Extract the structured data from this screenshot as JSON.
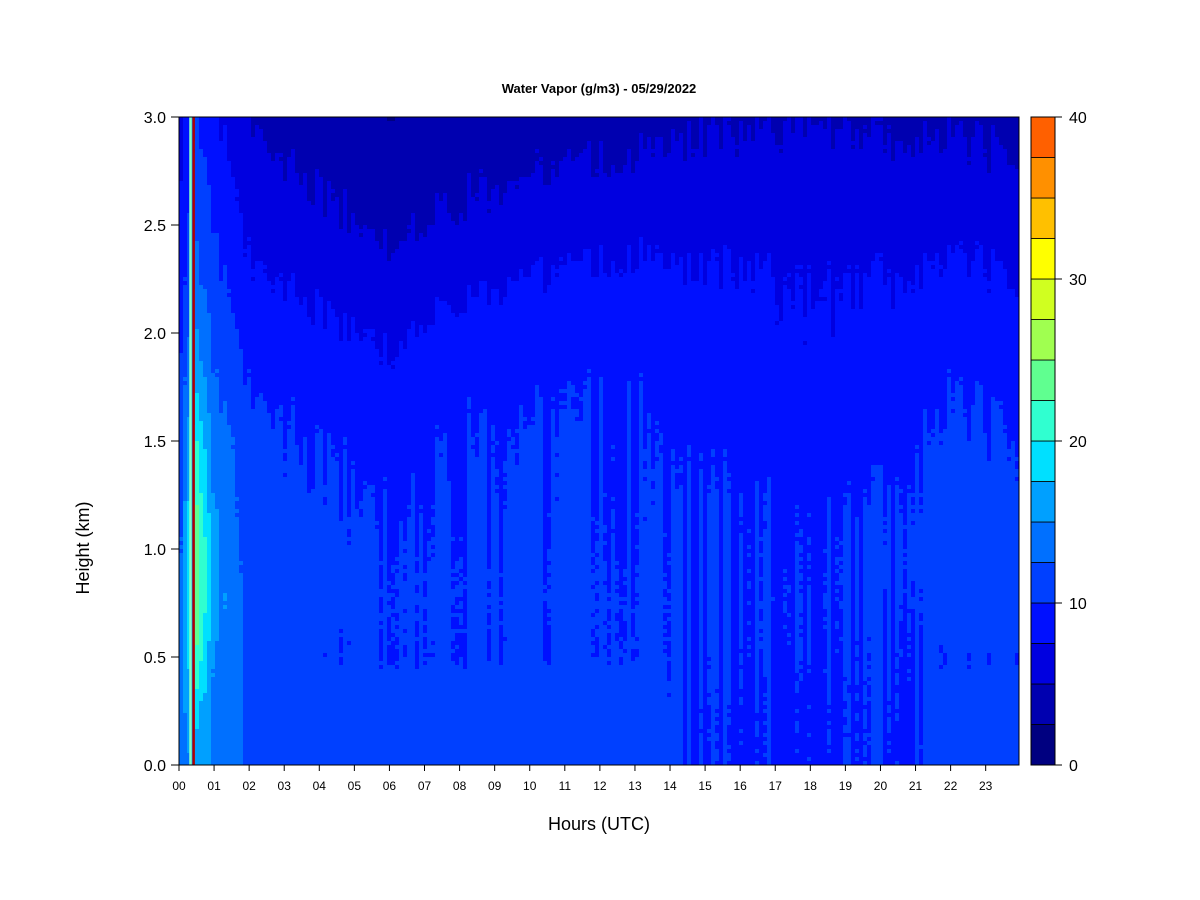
{
  "chart_data": {
    "type": "heatmap",
    "title": "Water Vapor (g/m3) - 05/29/2022",
    "xlabel": "Hours (UTC)",
    "ylabel": "Height (km)",
    "x_tick_labels": [
      "00",
      "01",
      "02",
      "03",
      "04",
      "05",
      "06",
      "07",
      "08",
      "09",
      "10",
      "11",
      "12",
      "13",
      "14",
      "15",
      "16",
      "17",
      "18",
      "19",
      "20",
      "21",
      "22",
      "23"
    ],
    "x_ticks": [
      0,
      1,
      2,
      3,
      4,
      5,
      6,
      7,
      8,
      9,
      10,
      11,
      12,
      13,
      14,
      15,
      16,
      17,
      18,
      19,
      20,
      21,
      22,
      23
    ],
    "xlim": [
      0,
      23.95
    ],
    "y_tick_labels": [
      "0.0",
      "0.5",
      "1.0",
      "1.5",
      "2.0",
      "2.5",
      "3.0"
    ],
    "y_ticks": [
      0,
      0.5,
      1.0,
      1.5,
      2.0,
      2.5,
      3.0
    ],
    "ylim": [
      0,
      3.0
    ],
    "colorbar": {
      "levels": [
        0,
        2.5,
        5,
        7.5,
        10,
        12.5,
        15,
        17.5,
        20,
        22.5,
        25,
        27.5,
        30,
        32.5,
        35,
        37.5,
        40
      ],
      "tick_labels": [
        "0",
        "10",
        "20",
        "30",
        "40"
      ],
      "tick_values": [
        0,
        10,
        20,
        30,
        40
      ],
      "colors": [
        "#000080",
        "#0000b0",
        "#0000e0",
        "#0010ff",
        "#0040ff",
        "#0070ff",
        "#00a0ff",
        "#00e0ff",
        "#30ffd0",
        "#60ff90",
        "#a0ff50",
        "#d0ff20",
        "#ffff00",
        "#ffc000",
        "#ff9000",
        "#ff6000",
        "#ff3000",
        "#e00000",
        "#b00000",
        "#800000"
      ]
    },
    "field_profiles": {
      "heights_km": [
        0.0,
        0.25,
        0.5,
        0.75,
        1.0,
        1.25,
        1.5,
        1.75,
        2.0,
        2.25,
        2.5,
        2.75,
        3.0
      ],
      "hours": [
        0.0,
        0.5,
        1.0,
        2.0,
        3.0,
        4.0,
        6.0,
        8.0,
        10.0,
        13.0,
        14.5,
        16.0,
        18.0,
        19.5,
        21.0,
        22.0,
        23.9
      ],
      "values": [
        [
          13,
          13,
          13,
          12,
          11,
          11,
          10,
          10,
          9,
          8,
          8,
          7,
          6
        ],
        [
          16,
          18,
          22,
          24,
          24,
          22,
          20,
          17,
          15,
          13,
          12,
          11,
          10
        ],
        [
          15,
          15,
          15,
          16,
          16,
          15,
          14,
          13,
          12,
          11,
          10,
          9,
          8
        ],
        [
          12,
          12,
          12,
          12,
          11,
          11,
          11,
          10,
          9,
          8,
          7,
          6,
          5
        ],
        [
          12,
          11.5,
          10.5,
          11,
          10.8,
          10.6,
          10.2,
          9.6,
          8.6,
          7.4,
          6.4,
          5.2,
          4.2
        ],
        [
          11.5,
          11.2,
          10.4,
          10.6,
          10.6,
          10.4,
          9.8,
          9.0,
          8.0,
          6.8,
          5.6,
          4.6,
          3.6
        ],
        [
          11.2,
          11.0,
          10.2,
          10.3,
          10.2,
          9.8,
          9.2,
          8.2,
          7.2,
          5.8,
          4.6,
          3.6,
          2.8
        ],
        [
          11.4,
          11.2,
          10.2,
          10.3,
          10.2,
          10.1,
          9.9,
          9.3,
          8.4,
          6.8,
          5.4,
          4.4,
          3.4
        ],
        [
          11.6,
          11.3,
          10.2,
          10.4,
          10.3,
          10.2,
          10.1,
          9.6,
          8.8,
          7.6,
          6.2,
          4.8,
          3.8
        ],
        [
          11.8,
          11.4,
          10.3,
          10.3,
          10.2,
          10.1,
          10.0,
          9.8,
          9.0,
          8.0,
          6.8,
          5.4,
          4.2
        ],
        [
          9.8,
          9.8,
          10.0,
          10.1,
          10.1,
          10.0,
          9.6,
          9.2,
          8.6,
          7.8,
          6.6,
          5.6,
          4.6
        ],
        [
          9.8,
          9.8,
          10.0,
          10.0,
          10.0,
          9.9,
          9.4,
          9.0,
          8.4,
          7.8,
          6.8,
          5.8,
          4.8
        ],
        [
          9.8,
          9.8,
          9.9,
          10.0,
          9.9,
          9.7,
          9.0,
          8.4,
          7.9,
          7.4,
          6.8,
          6.0,
          5.0
        ],
        [
          9.8,
          9.8,
          9.9,
          10.0,
          10.0,
          9.8,
          9.2,
          8.6,
          8.0,
          7.4,
          6.6,
          5.6,
          4.6
        ],
        [
          10.0,
          10.0,
          10.1,
          10.2,
          10.4,
          10.2,
          9.8,
          9.4,
          8.6,
          7.6,
          6.6,
          5.6,
          4.6
        ],
        [
          11.2,
          11.0,
          10.2,
          11.1,
          11.1,
          10.8,
          10.4,
          9.8,
          9.0,
          8.0,
          6.8,
          5.6,
          4.6
        ],
        [
          11.2,
          11.0,
          10.4,
          11.0,
          11.0,
          10.6,
          10.2,
          9.6,
          8.6,
          7.6,
          6.6,
          5.4,
          4.4
        ]
      ]
    },
    "vertical_streaks": [
      {
        "hour": 0.37,
        "color": "#0090ff"
      },
      {
        "hour": 0.32,
        "color": "#80ffc0"
      },
      {
        "hour": 0.41,
        "color": "#b00000"
      }
    ]
  }
}
